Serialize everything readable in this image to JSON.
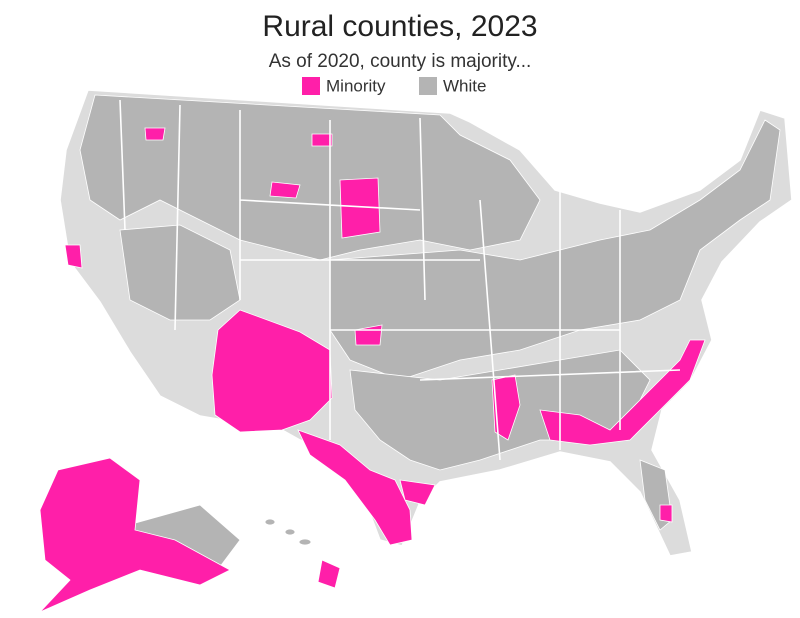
{
  "header": {
    "title": "Rural counties, 2023",
    "subtitle": "As of 2020, county is majority..."
  },
  "legend": [
    {
      "label": "Minority",
      "color": "#ff1fa9"
    },
    {
      "label": "White",
      "color": "#b4b4b4"
    }
  ]
}
